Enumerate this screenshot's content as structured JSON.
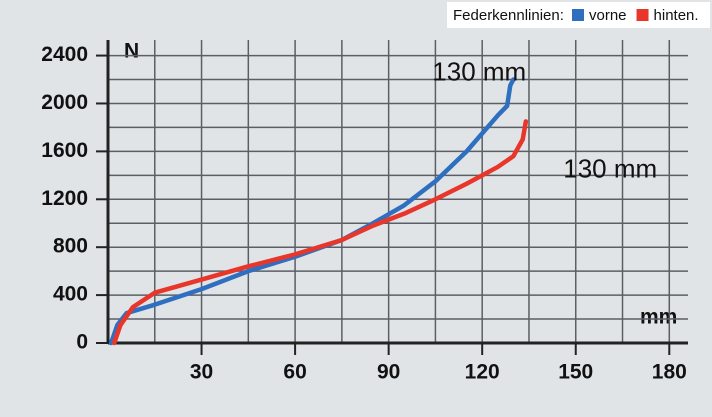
{
  "chart_data": {
    "type": "line",
    "legend_title": "Federkennlinien:",
    "y_label": "N",
    "x_label": "mm",
    "annotations": [
      {
        "text": "130 mm",
        "x": 104,
        "y": 2250
      },
      {
        "text": "130 mm",
        "x": 146,
        "y": 1440
      }
    ],
    "x": [],
    "series": [
      {
        "name": "vorne",
        "color": "#2f6fc0",
        "x": [
          1,
          3,
          6,
          15,
          30,
          45,
          60,
          75,
          85,
          95,
          105,
          115,
          125,
          128,
          129,
          130
        ],
        "values": [
          0,
          150,
          250,
          320,
          450,
          600,
          720,
          860,
          1000,
          1150,
          1350,
          1600,
          1900,
          1980,
          2150,
          2200
        ]
      },
      {
        "name": "hinten.",
        "color": "#e8362a",
        "x": [
          2,
          4,
          8,
          15,
          30,
          45,
          60,
          75,
          85,
          95,
          105,
          115,
          125,
          130,
          133,
          134
        ],
        "values": [
          0,
          150,
          300,
          420,
          530,
          640,
          740,
          860,
          980,
          1080,
          1200,
          1330,
          1470,
          1560,
          1700,
          1850
        ]
      }
    ],
    "xlim": [
      0,
      186
    ],
    "ylim": [
      0,
      2530
    ],
    "xticks": [
      30,
      60,
      90,
      120,
      150,
      180
    ],
    "yticks": [
      0,
      400,
      800,
      1200,
      1600,
      2000,
      2400
    ],
    "x_minor_ticks": [
      15,
      45,
      75,
      105,
      135,
      165
    ],
    "y_minor_ticks": [
      200,
      600,
      1000,
      1400,
      1800,
      2200
    ],
    "grid": true
  }
}
